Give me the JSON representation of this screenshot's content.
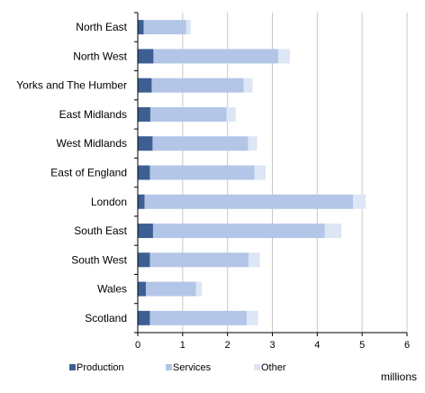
{
  "chart_data": {
    "type": "bar",
    "orientation": "horizontal",
    "stacked": true,
    "categories": [
      "North East",
      "North West",
      "Yorks and The Humber",
      "East Midlands",
      "West Midlands",
      "East of England",
      "London",
      "South East",
      "South West",
      "Wales",
      "Scotland"
    ],
    "series": [
      {
        "name": "Production",
        "color": "#3d5f93",
        "values": [
          0.13,
          0.35,
          0.31,
          0.28,
          0.33,
          0.27,
          0.15,
          0.34,
          0.27,
          0.18,
          0.27
        ]
      },
      {
        "name": "Services",
        "color": "#b3c6e7",
        "values": [
          0.95,
          2.78,
          2.05,
          1.7,
          2.13,
          2.33,
          4.65,
          3.83,
          2.2,
          1.12,
          2.16
        ]
      },
      {
        "name": "Other",
        "color": "#dce6f4",
        "values": [
          0.1,
          0.26,
          0.2,
          0.2,
          0.2,
          0.25,
          0.28,
          0.37,
          0.25,
          0.13,
          0.25
        ]
      }
    ],
    "xlim": [
      0,
      6
    ],
    "xticks": [
      "0",
      "1",
      "2",
      "3",
      "4",
      "5",
      "6"
    ],
    "unit_label": "millions",
    "grid": true,
    "legend_position": "bottom"
  }
}
